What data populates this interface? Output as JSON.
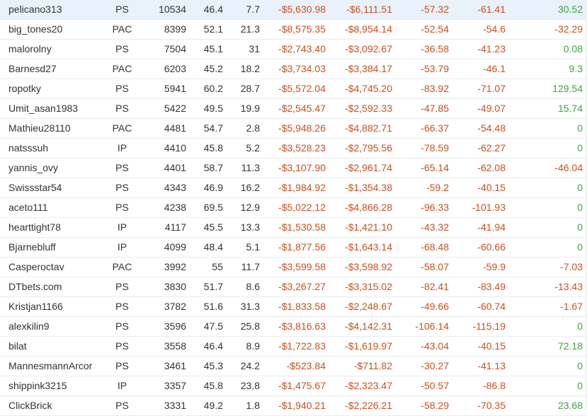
{
  "colors": {
    "negative": "#c9501e",
    "positive": "#3fa33f",
    "text": "#333333",
    "highlight_row": "#e9f1fb"
  },
  "rows": [
    {
      "player": "pelicano313",
      "site": "PS",
      "hands": "10534",
      "vpip": "46.4",
      "pfr": "7.7",
      "winnings": "-$5,630.98",
      "ev_winnings": "-$6,111.51",
      "bb100": "-57.32",
      "ev_bb100": "-61.41",
      "last": "30.52",
      "last_sign": "pos",
      "highlight": true
    },
    {
      "player": "big_tones20",
      "site": "PAC",
      "hands": "8399",
      "vpip": "52.1",
      "pfr": "21.3",
      "winnings": "-$8,575.35",
      "ev_winnings": "-$8,954.14",
      "bb100": "-52.54",
      "ev_bb100": "-54.6",
      "last": "-32.29",
      "last_sign": "neg",
      "highlight": false
    },
    {
      "player": "malorolny",
      "site": "PS",
      "hands": "7504",
      "vpip": "45.1",
      "pfr": "31",
      "winnings": "-$2,743.40",
      "ev_winnings": "-$3,092.67",
      "bb100": "-36.58",
      "ev_bb100": "-41.23",
      "last": "0.08",
      "last_sign": "pos",
      "highlight": false
    },
    {
      "player": "Barnesd27",
      "site": "PAC",
      "hands": "6203",
      "vpip": "45.2",
      "pfr": "18.2",
      "winnings": "-$3,734.03",
      "ev_winnings": "-$3,384.17",
      "bb100": "-53.79",
      "ev_bb100": "-46.1",
      "last": "9.3",
      "last_sign": "pos",
      "highlight": false
    },
    {
      "player": "ropotky",
      "site": "PS",
      "hands": "5941",
      "vpip": "60.2",
      "pfr": "28.7",
      "winnings": "-$5,572.04",
      "ev_winnings": "-$4,745.20",
      "bb100": "-83.92",
      "ev_bb100": "-71.07",
      "last": "129.54",
      "last_sign": "pos",
      "highlight": false
    },
    {
      "player": "Umit_asan1983",
      "site": "PS",
      "hands": "5422",
      "vpip": "49.5",
      "pfr": "19.9",
      "winnings": "-$2,545.47",
      "ev_winnings": "-$2,592.33",
      "bb100": "-47.85",
      "ev_bb100": "-49.07",
      "last": "15.74",
      "last_sign": "pos",
      "highlight": false
    },
    {
      "player": "Mathieu28110",
      "site": "PAC",
      "hands": "4481",
      "vpip": "54.7",
      "pfr": "2.8",
      "winnings": "-$5,948.26",
      "ev_winnings": "-$4,882.71",
      "bb100": "-66.37",
      "ev_bb100": "-54.48",
      "last": "0",
      "last_sign": "pos",
      "highlight": false
    },
    {
      "player": "natsssuh",
      "site": "IP",
      "hands": "4410",
      "vpip": "45.8",
      "pfr": "5.2",
      "winnings": "-$3,528.23",
      "ev_winnings": "-$2,795.56",
      "bb100": "-78.59",
      "ev_bb100": "-62.27",
      "last": "0",
      "last_sign": "pos",
      "highlight": false
    },
    {
      "player": "yannis_ovy",
      "site": "PS",
      "hands": "4401",
      "vpip": "58.7",
      "pfr": "11.3",
      "winnings": "-$3,107.90",
      "ev_winnings": "-$2,961.74",
      "bb100": "-65.14",
      "ev_bb100": "-62.08",
      "last": "-46.04",
      "last_sign": "neg",
      "highlight": false
    },
    {
      "player": "Swissstar54",
      "site": "PS",
      "hands": "4343",
      "vpip": "46.9",
      "pfr": "16.2",
      "winnings": "-$1,984.92",
      "ev_winnings": "-$1,354.38",
      "bb100": "-59.2",
      "ev_bb100": "-40.15",
      "last": "0",
      "last_sign": "pos",
      "highlight": false
    },
    {
      "player": "aceto111",
      "site": "PS",
      "hands": "4238",
      "vpip": "69.5",
      "pfr": "12.9",
      "winnings": "-$5,022.12",
      "ev_winnings": "-$4,866.28",
      "bb100": "-96.33",
      "ev_bb100": "-101.93",
      "last": "0",
      "last_sign": "pos",
      "highlight": false
    },
    {
      "player": "hearttight78",
      "site": "IP",
      "hands": "4117",
      "vpip": "45.5",
      "pfr": "13.3",
      "winnings": "-$1,530.58",
      "ev_winnings": "-$1,421.10",
      "bb100": "-43.32",
      "ev_bb100": "-41.94",
      "last": "0",
      "last_sign": "pos",
      "highlight": false
    },
    {
      "player": "Bjarnebluff",
      "site": "IP",
      "hands": "4099",
      "vpip": "48.4",
      "pfr": "5.1",
      "winnings": "-$1,877.56",
      "ev_winnings": "-$1,643.14",
      "bb100": "-68.48",
      "ev_bb100": "-60.66",
      "last": "0",
      "last_sign": "pos",
      "highlight": false
    },
    {
      "player": "Casperoctav",
      "site": "PAC",
      "hands": "3992",
      "vpip": "55",
      "pfr": "11.7",
      "winnings": "-$3,599.58",
      "ev_winnings": "-$3,598.92",
      "bb100": "-58.07",
      "ev_bb100": "-59.9",
      "last": "-7.03",
      "last_sign": "neg",
      "highlight": false
    },
    {
      "player": "DTbets.com",
      "site": "PS",
      "hands": "3830",
      "vpip": "51.7",
      "pfr": "8.6",
      "winnings": "-$3,267.27",
      "ev_winnings": "-$3,315.02",
      "bb100": "-82.41",
      "ev_bb100": "-83.49",
      "last": "-13.43",
      "last_sign": "neg",
      "highlight": false
    },
    {
      "player": "Kristjan1166",
      "site": "PS",
      "hands": "3782",
      "vpip": "51.6",
      "pfr": "31.3",
      "winnings": "-$1,833.58",
      "ev_winnings": "-$2,248.67",
      "bb100": "-49.66",
      "ev_bb100": "-60.74",
      "last": "-1.67",
      "last_sign": "neg",
      "highlight": false
    },
    {
      "player": "alexkilin9",
      "site": "PS",
      "hands": "3596",
      "vpip": "47.5",
      "pfr": "25.8",
      "winnings": "-$3,816.63",
      "ev_winnings": "-$4,142.31",
      "bb100": "-106.14",
      "ev_bb100": "-115.19",
      "last": "0",
      "last_sign": "pos",
      "highlight": false
    },
    {
      "player": "bilat",
      "site": "PS",
      "hands": "3558",
      "vpip": "46.4",
      "pfr": "8.9",
      "winnings": "-$1,722.83",
      "ev_winnings": "-$1,619.97",
      "bb100": "-43.04",
      "ev_bb100": "-40.15",
      "last": "72.18",
      "last_sign": "pos",
      "highlight": false
    },
    {
      "player": "MannesmannArcor",
      "site": "PS",
      "hands": "3461",
      "vpip": "45.3",
      "pfr": "24.2",
      "winnings": "-$523.84",
      "ev_winnings": "-$711.82",
      "bb100": "-30.27",
      "ev_bb100": "-41.13",
      "last": "0",
      "last_sign": "pos",
      "highlight": false
    },
    {
      "player": "shippink3215",
      "site": "IP",
      "hands": "3357",
      "vpip": "45.8",
      "pfr": "23.8",
      "winnings": "-$1,475.67",
      "ev_winnings": "-$2,323.47",
      "bb100": "-50.57",
      "ev_bb100": "-86.8",
      "last": "0",
      "last_sign": "pos",
      "highlight": false
    },
    {
      "player": "ClickBrick",
      "site": "PS",
      "hands": "3331",
      "vpip": "49.2",
      "pfr": "1.8",
      "winnings": "-$1,940.21",
      "ev_winnings": "-$2,226.21",
      "bb100": "-58.29",
      "ev_bb100": "-70.35",
      "last": "23.68",
      "last_sign": "pos",
      "highlight": false
    }
  ]
}
